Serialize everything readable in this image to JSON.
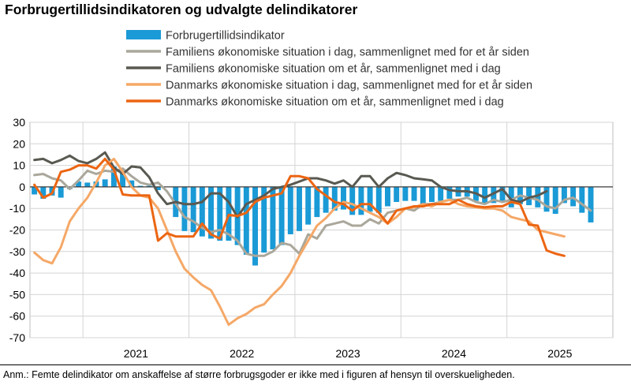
{
  "title": "Forbrugertillidsindikatoren og udvalgte delindikatorer",
  "note": "Anm.: Femte delindikator om anskaffelse af større forbrugsgoder er ikke med i figuren af hensyn til overskueligheden.",
  "chart_data": {
    "type": "bar+line",
    "title": "Forbrugertillidsindikatoren og udvalgte delindikatorer",
    "ylim": [
      -70,
      30
    ],
    "yticks": [
      30,
      20,
      10,
      0,
      -10,
      -20,
      -30,
      -40,
      -50,
      -60,
      -70
    ],
    "x_start": "2020-07",
    "x_end": "2025-12",
    "xlabels": [
      "2021",
      "2022",
      "2023",
      "2024",
      "2025"
    ],
    "grid": true,
    "legend_position": "top",
    "bar_series": {
      "name": "Forbrugertillidsindikator",
      "color": "#1a9ad6",
      "values": [
        -3.5,
        -5.5,
        -4,
        -5,
        -1,
        2.5,
        2,
        2.5,
        3.5,
        9.5,
        7,
        3,
        0.5,
        0.5,
        -1.5,
        0,
        -14,
        -20.5,
        -21,
        -23,
        -24,
        -25,
        -25,
        -27,
        -31.5,
        -36.5,
        -30.5,
        -29,
        -27,
        -22,
        -20.5,
        -17.5,
        -14,
        -12,
        -11,
        -10.5,
        -13,
        -13,
        -11.5,
        -12,
        -9,
        -7,
        -6.5,
        -6.5,
        -8,
        -7,
        -6.5,
        -5.5,
        -4.5,
        -4.5,
        -6.5,
        -8,
        -7.5,
        -7,
        -9.5,
        -8,
        -8.5,
        -9.5,
        -11.5,
        -12.5,
        -7.5,
        -9,
        -12,
        -16.5
      ]
    },
    "series": [
      {
        "name": "Familiens økonomiske situation i dag, sammenlignet med for et år siden",
        "color": "#aaa79b",
        "values": [
          5.5,
          6,
          4,
          3,
          -1,
          3,
          7.5,
          6,
          7.5,
          7,
          8.5,
          5,
          2,
          1,
          2,
          -2,
          -8,
          -14,
          -16,
          -19,
          -21,
          -20,
          -22,
          -25,
          -31,
          -32,
          -32,
          -30,
          -26,
          -27,
          -31,
          -22,
          -24,
          -18,
          -17,
          -16,
          -18,
          -18,
          -15,
          -17,
          -12,
          -11,
          -10,
          -11,
          -8,
          -8,
          -7,
          -6,
          -6,
          -5,
          -7,
          -8,
          -6,
          -7,
          -6,
          -4,
          -5,
          -6,
          -9,
          -10,
          -6,
          -5,
          -8,
          -11
        ]
      },
      {
        "name": "Familiens økonomiske situation om et år, sammenlignet med i dag",
        "color": "#595951",
        "values": [
          12.5,
          13,
          11,
          12.5,
          14.5,
          12,
          11,
          13,
          16,
          9,
          6,
          9.5,
          9,
          4.5,
          -3,
          -8,
          -7,
          -8,
          -8,
          -7,
          -3,
          -3,
          -7,
          -14,
          -8,
          -6,
          -4,
          -1,
          0,
          1,
          2.5,
          4,
          4,
          3,
          1.5,
          3,
          0,
          5,
          5,
          0,
          4,
          6.5,
          5.5,
          4,
          3.5,
          3,
          0,
          -1.5,
          -2,
          -2,
          -3,
          -5,
          -3,
          -1,
          -6,
          -7,
          -5,
          -4,
          -2
        ]
      },
      {
        "name": "Danmarks økonomiske situation i dag, sammenlignet med for et år siden",
        "color": "#f5a867",
        "values": [
          -30.5,
          -34,
          -35.5,
          -28,
          -16,
          -10,
          -5,
          2,
          10,
          13,
          7,
          0,
          -4,
          -5,
          -10,
          -20,
          -30,
          -38,
          -42,
          -45.5,
          -48,
          -55.5,
          -64,
          -61,
          -59,
          -56,
          -54.5,
          -50,
          -46,
          -40,
          -32,
          -25,
          -18,
          -14.5,
          -10,
          -7,
          -8,
          -10,
          -12,
          -14,
          -17,
          -14,
          -10,
          -9.5,
          -8,
          -9,
          -7,
          -6,
          -8,
          -9,
          -9.5,
          -10,
          -10,
          -11,
          -14,
          -15,
          -16,
          -20,
          -21,
          -22,
          -23
        ]
      },
      {
        "name": "Danmarks økonomiske situation om et år, sammenlignet med i dag",
        "color": "#ec6512",
        "values": [
          1,
          -5,
          -3,
          7,
          8,
          10,
          10,
          8.5,
          13,
          8,
          -3.5,
          -4,
          -4,
          -4,
          -25,
          -21.5,
          -23,
          -23,
          -23,
          -17,
          -22,
          -24,
          -13,
          -13.5,
          -12,
          -7,
          -5,
          -4,
          -3,
          5,
          5,
          4,
          -1,
          -4,
          -7,
          -8,
          -11,
          -8,
          -8,
          -12,
          -17,
          -11,
          -10,
          -9,
          -9,
          -8,
          -8,
          -8,
          -6,
          -8,
          -9,
          -9.5,
          -9,
          -9,
          -7,
          -8,
          -17.5,
          -18,
          -29.5,
          -31,
          -32
        ]
      }
    ]
  }
}
